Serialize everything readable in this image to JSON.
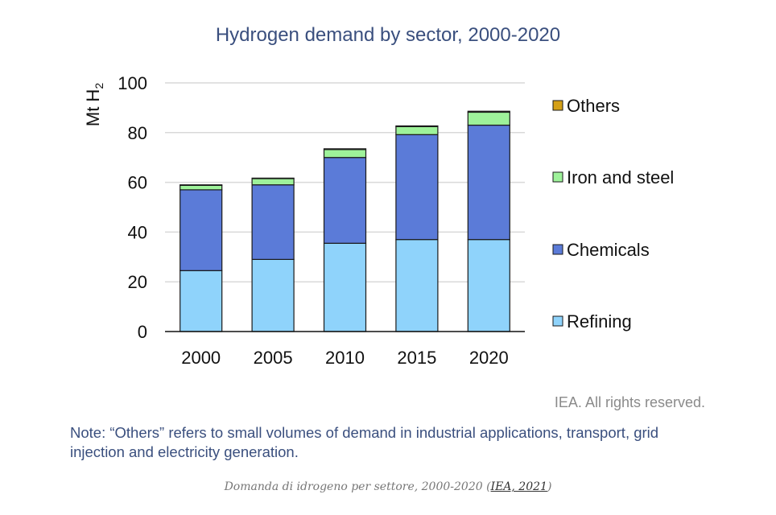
{
  "chart_data": {
    "type": "bar",
    "stacked": true,
    "title": "Hydrogen demand by sector, 2000-2020",
    "ylabel": "Mt H",
    "ylabel_subscript": "2",
    "ylim": [
      0,
      100
    ],
    "yticks": [
      0,
      20,
      40,
      60,
      80,
      100
    ],
    "grid": true,
    "legend_position": "right",
    "categories": [
      "2000",
      "2005",
      "2010",
      "2015",
      "2020"
    ],
    "series": [
      {
        "name": "Refining",
        "color": "#8fd3fb",
        "values": [
          24.5,
          29,
          35.5,
          37,
          37
        ]
      },
      {
        "name": "Chemicals",
        "color": "#5b7bd8",
        "values": [
          32.5,
          30,
          34.5,
          42.2,
          46
        ]
      },
      {
        "name": "Iron and steel",
        "color": "#9ef29a",
        "values": [
          1.8,
          2.5,
          3.2,
          3.2,
          5.2
        ]
      },
      {
        "name": "Others",
        "color": "#d4a017",
        "values": [
          0.2,
          0.2,
          0.3,
          0.3,
          0.4
        ]
      }
    ]
  },
  "rights_text": "IEA. All rights reserved.",
  "note_text": "Note: “Others” refers to small volumes of demand in industrial applications, transport, grid injection and electricity generation.",
  "caption": {
    "prefix": "Domanda di idrogeno per settore, 2000-2020 (",
    "link_text": "IEA, 2021",
    "suffix": ")"
  }
}
